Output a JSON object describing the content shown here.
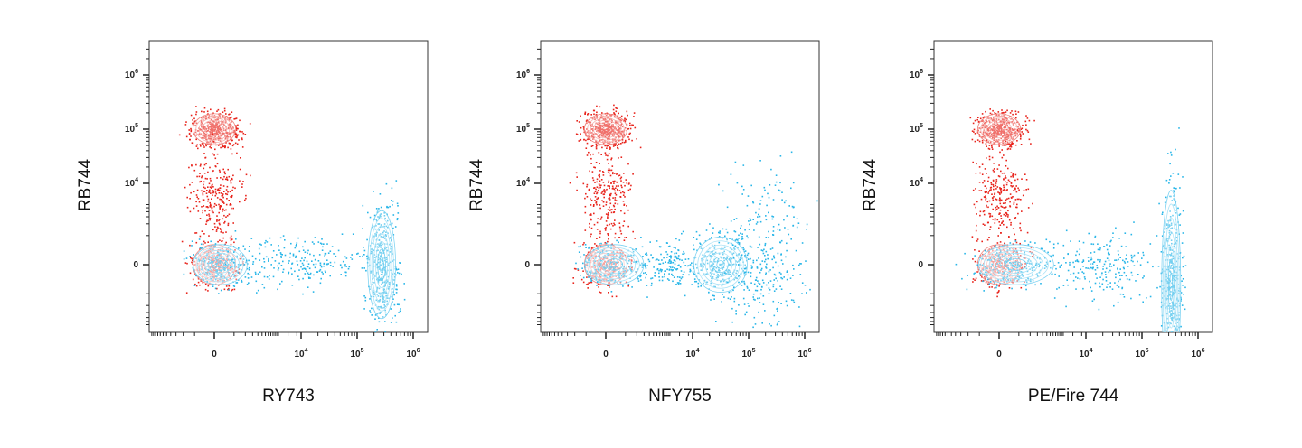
{
  "chart_data": [
    {
      "type": "scatter",
      "subtype": "flow-cytometry-contour-dot-plot",
      "xlabel": "RY743",
      "ylabel": "RB744",
      "x_scale": "biexponential",
      "y_scale": "biexponential",
      "x_ticks": [
        "0",
        "10^4",
        "10^5",
        "10^6"
      ],
      "y_ticks": [
        "0",
        "10^4",
        "10^5",
        "10^6"
      ],
      "grid": false,
      "legend": "none",
      "populations": [
        {
          "color": "#e8241c",
          "x_range": [
            -300,
            300
          ],
          "y_range": [
            50000,
            200000
          ],
          "count": 450,
          "contours": true
        },
        {
          "color": "#e8241c",
          "x_range": [
            -300,
            300
          ],
          "y_range": [
            600,
            30000
          ],
          "count": 260,
          "contours": false
        },
        {
          "color": "#e8241c",
          "x_range": [
            -300,
            300
          ],
          "y_range": [
            -300,
            300
          ],
          "count": 300,
          "contours": true
        },
        {
          "color": "#29b6e8",
          "x_range": [
            -300,
            600
          ],
          "y_range": [
            -300,
            300
          ],
          "count": 200,
          "contours": true
        },
        {
          "color": "#29b6e8",
          "x_range": [
            600,
            100000
          ],
          "y_range": [
            -250,
            400
          ],
          "count": 220,
          "contours": false
        },
        {
          "color": "#29b6e8",
          "x_range": [
            150000,
            500000
          ],
          "y_range": [
            -2500,
            2500
          ],
          "count": 420,
          "contours": true
        }
      ]
    },
    {
      "type": "scatter",
      "subtype": "flow-cytometry-contour-dot-plot",
      "xlabel": "NFY755",
      "ylabel": "RB744",
      "x_scale": "biexponential",
      "y_scale": "biexponential",
      "x_ticks": [
        "0",
        "10^4",
        "10^5",
        "10^6"
      ],
      "y_ticks": [
        "0",
        "10^4",
        "10^5",
        "10^6"
      ],
      "grid": false,
      "legend": "none",
      "populations": [
        {
          "color": "#e8241c",
          "x_range": [
            -300,
            300
          ],
          "y_range": [
            50000,
            200000
          ],
          "count": 450,
          "contours": true
        },
        {
          "color": "#e8241c",
          "x_range": [
            -300,
            300
          ],
          "y_range": [
            600,
            30000
          ],
          "count": 260,
          "contours": false
        },
        {
          "color": "#e8241c",
          "x_range": [
            -300,
            300
          ],
          "y_range": [
            -300,
            300
          ],
          "count": 300,
          "contours": true
        },
        {
          "color": "#29b6e8",
          "x_range": [
            -300,
            800
          ],
          "y_range": [
            -300,
            300
          ],
          "count": 200,
          "contours": true
        },
        {
          "color": "#29b6e8",
          "x_range": [
            800,
            10000
          ],
          "y_range": [
            -250,
            400
          ],
          "count": 150,
          "contours": false
        },
        {
          "color": "#29b6e8",
          "x_range": [
            10000,
            100000
          ],
          "y_range": [
            -500,
            500
          ],
          "count": 300,
          "contours": true
        },
        {
          "color": "#29b6e8",
          "x_range": [
            40000,
            1000000
          ],
          "y_range": [
            -4000,
            9000
          ],
          "count": 320,
          "contours": false
        }
      ]
    },
    {
      "type": "scatter",
      "subtype": "flow-cytometry-contour-dot-plot",
      "xlabel": "PE/Fire 744",
      "ylabel": "RB744",
      "x_scale": "biexponential",
      "y_scale": "biexponential",
      "x_ticks": [
        "0",
        "10^4",
        "10^5",
        "10^6"
      ],
      "y_ticks": [
        "0",
        "10^4",
        "10^5",
        "10^6"
      ],
      "grid": false,
      "legend": "none",
      "populations": [
        {
          "color": "#e8241c",
          "x_range": [
            -300,
            300
          ],
          "y_range": [
            50000,
            200000
          ],
          "count": 450,
          "contours": true
        },
        {
          "color": "#e8241c",
          "x_range": [
            -300,
            300
          ],
          "y_range": [
            600,
            30000
          ],
          "count": 260,
          "contours": false
        },
        {
          "color": "#e8241c",
          "x_range": [
            -300,
            300
          ],
          "y_range": [
            -300,
            300
          ],
          "count": 300,
          "contours": true
        },
        {
          "color": "#29b6e8",
          "x_range": [
            -300,
            2000
          ],
          "y_range": [
            -300,
            300
          ],
          "count": 220,
          "contours": true
        },
        {
          "color": "#29b6e8",
          "x_range": [
            2000,
            120000
          ],
          "y_range": [
            -600,
            600
          ],
          "count": 220,
          "contours": false
        },
        {
          "color": "#29b6e8",
          "x_range": [
            220000,
            500000
          ],
          "y_range": [
            -60000,
            9000
          ],
          "count": 450,
          "contours": true
        }
      ]
    }
  ]
}
